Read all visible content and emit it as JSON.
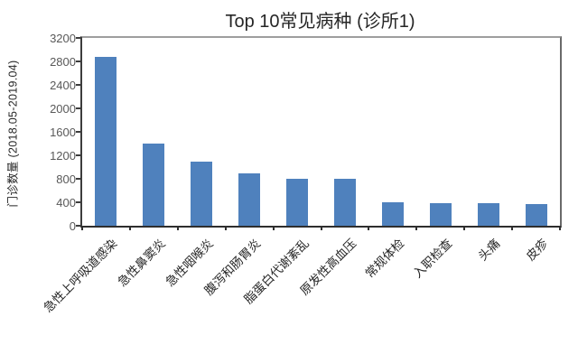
{
  "chart_data": {
    "type": "bar",
    "title": "Top 10常见病种 (诊所1)",
    "ylabel": "门诊数量 (2018.05-2019.04)",
    "xlabel": "",
    "categories": [
      "急性上呼吸道感染",
      "急性鼻窦炎",
      "急性咽喉炎",
      "腹泻和肠胃炎",
      "脂蛋白代谢紊乱",
      "原发性高血压",
      "常规体检",
      "入职检查",
      "头痛",
      "皮疹"
    ],
    "values": [
      2880,
      1400,
      1100,
      890,
      800,
      795,
      400,
      390,
      380,
      375
    ],
    "ylim": [
      0,
      3200
    ],
    "yticks": [
      0,
      400,
      800,
      1200,
      1600,
      2000,
      2400,
      2800,
      3200
    ],
    "grid": false,
    "legend_position": "none",
    "category_label_rotation_deg": 45
  },
  "colors": {
    "bar": "#4f81bd",
    "axis_dark": "#2e2e2e",
    "axis_light": "#9e9e9e",
    "tick_label": "#595959",
    "text": "#262626",
    "background": "#ffffff"
  }
}
